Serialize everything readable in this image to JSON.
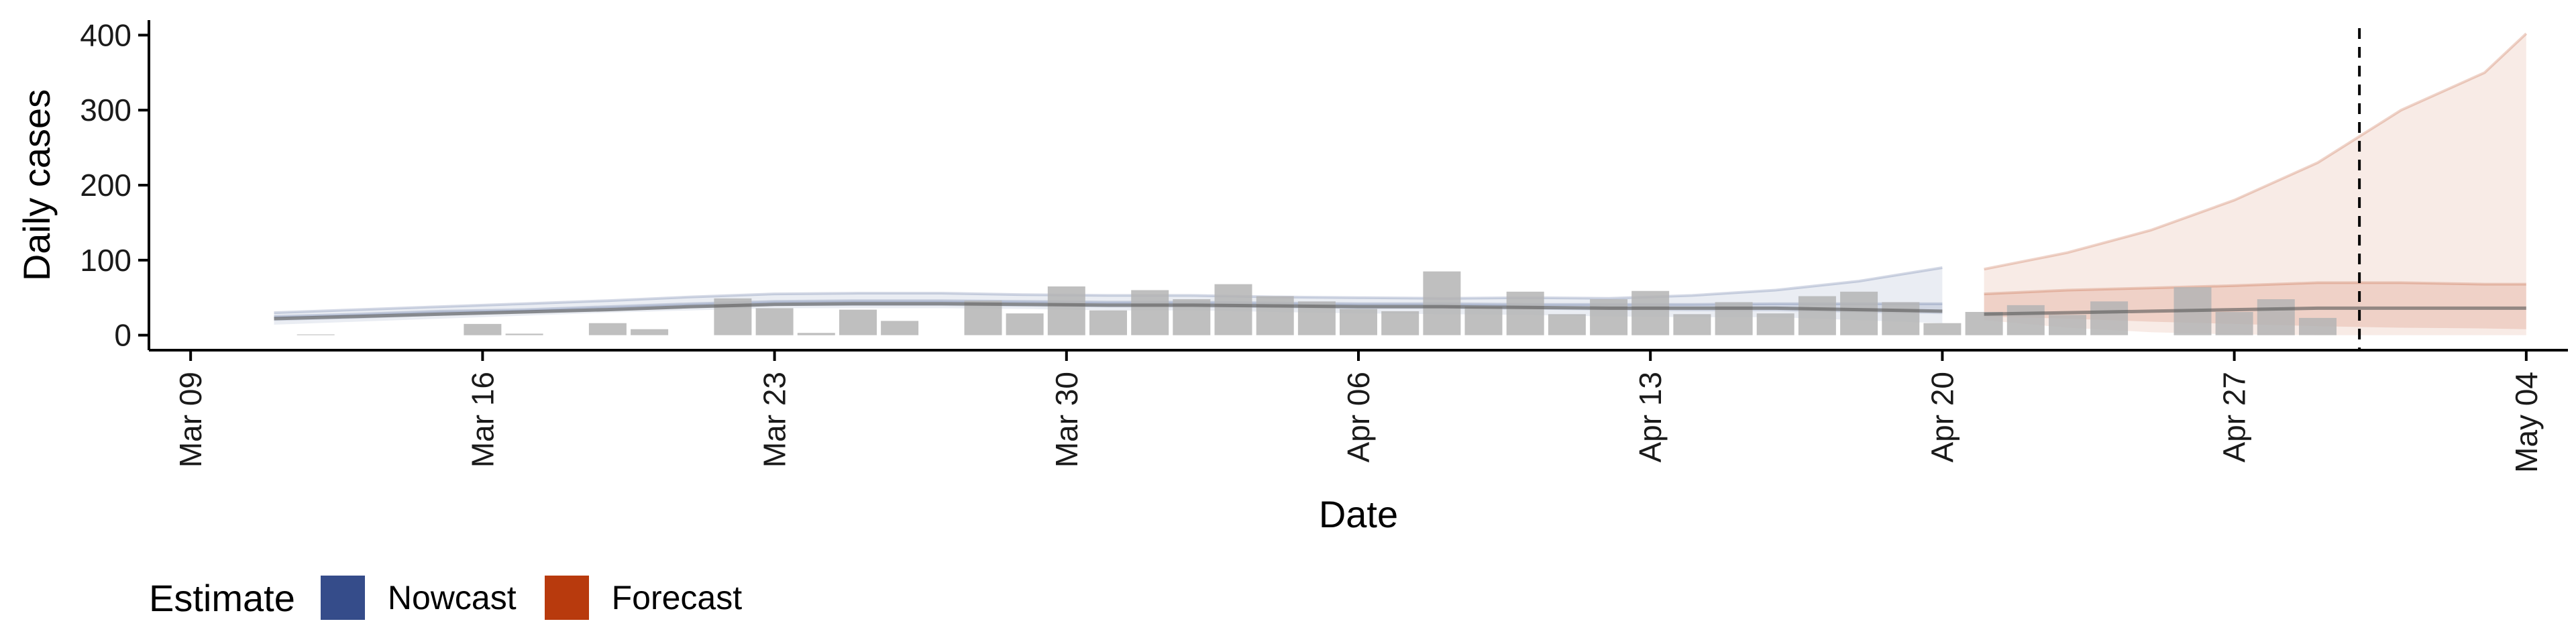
{
  "chart_data": {
    "type": "bar",
    "title": "",
    "xlabel": "Date",
    "ylabel": "Daily cases",
    "ylim": [
      -20,
      420
    ],
    "y_ticks": [
      0,
      100,
      200,
      300,
      400
    ],
    "x_range": [
      "2020-03-08",
      "2020-05-05"
    ],
    "x_ticks": [
      {
        "date": "2020-03-09",
        "label": "Mar 09"
      },
      {
        "date": "2020-03-16",
        "label": "Mar 16"
      },
      {
        "date": "2020-03-23",
        "label": "Mar 23"
      },
      {
        "date": "2020-03-30",
        "label": "Mar 30"
      },
      {
        "date": "2020-04-06",
        "label": "Apr 06"
      },
      {
        "date": "2020-04-13",
        "label": "Apr 13"
      },
      {
        "date": "2020-04-20",
        "label": "Apr 20"
      },
      {
        "date": "2020-04-27",
        "label": "Apr 27"
      },
      {
        "date": "2020-05-04",
        "label": "May 04"
      }
    ],
    "reference_line": {
      "date": "2020-04-30",
      "style": "dashed"
    },
    "grid": false,
    "legend": {
      "title": "Estimate",
      "placement": "bottom-left",
      "entries": [
        {
          "label": "Nowcast",
          "color": "#354c8a"
        },
        {
          "label": "Forecast",
          "color": "#b83a0d"
        }
      ]
    },
    "observed_cases": {
      "color": "#b4b4b4",
      "dates": [
        "2020-03-12",
        "2020-03-13",
        "2020-03-14",
        "2020-03-15",
        "2020-03-16",
        "2020-03-17",
        "2020-03-18",
        "2020-03-19",
        "2020-03-20",
        "2020-03-21",
        "2020-03-22",
        "2020-03-23",
        "2020-03-24",
        "2020-03-25",
        "2020-03-26",
        "2020-03-27",
        "2020-03-28",
        "2020-03-29",
        "2020-03-30",
        "2020-03-31",
        "2020-04-01",
        "2020-04-02",
        "2020-04-03",
        "2020-04-04",
        "2020-04-05",
        "2020-04-06",
        "2020-04-07",
        "2020-04-08",
        "2020-04-09",
        "2020-04-10",
        "2020-04-11",
        "2020-04-12",
        "2020-04-13",
        "2020-04-14",
        "2020-04-15",
        "2020-04-16",
        "2020-04-17",
        "2020-04-18",
        "2020-04-19",
        "2020-04-20",
        "2020-04-21",
        "2020-04-22",
        "2020-04-23",
        "2020-04-24",
        "2020-04-25",
        "2020-04-26",
        "2020-04-27",
        "2020-04-28",
        "2020-04-29"
      ],
      "values": [
        1,
        0,
        0,
        0,
        15,
        2,
        0,
        16,
        8,
        0,
        49,
        36,
        3,
        34,
        19,
        0,
        46,
        29,
        65,
        33,
        60,
        48,
        68,
        52,
        45,
        35,
        32,
        85,
        38,
        58,
        28,
        48,
        59,
        28,
        44,
        29,
        52,
        58,
        44,
        16,
        31,
        40,
        27,
        45,
        0,
        64,
        31,
        48,
        23
      ]
    },
    "nowcast": {
      "color": "#354c8a",
      "dates": [
        "2020-03-11",
        "2020-03-13",
        "2020-03-15",
        "2020-03-17",
        "2020-03-19",
        "2020-03-21",
        "2020-03-23",
        "2020-03-25",
        "2020-03-27",
        "2020-03-29",
        "2020-03-31",
        "2020-04-02",
        "2020-04-04",
        "2020-04-06",
        "2020-04-08",
        "2020-04-10",
        "2020-04-12",
        "2020-04-14",
        "2020-04-16",
        "2020-04-18",
        "2020-04-20"
      ],
      "median": [
        22,
        25,
        28,
        31,
        34,
        38,
        41,
        42,
        42,
        41,
        40,
        40,
        39,
        38,
        38,
        37,
        36,
        36,
        36,
        34,
        32
      ],
      "lower_90": [
        14,
        18,
        22,
        26,
        30,
        33,
        36,
        36,
        36,
        35,
        33,
        33,
        31,
        29,
        28,
        27,
        25,
        24,
        24,
        20,
        16
      ],
      "upper_90": [
        30,
        34,
        38,
        42,
        46,
        51,
        55,
        56,
        56,
        54,
        53,
        53,
        51,
        50,
        49,
        50,
        49,
        53,
        60,
        72,
        90
      ],
      "lower_50": [
        19,
        22,
        26,
        29,
        32,
        36,
        39,
        39,
        39,
        38,
        37,
        37,
        36,
        35,
        35,
        34,
        33,
        32,
        32,
        30,
        28
      ],
      "upper_50": [
        25,
        28,
        32,
        34,
        38,
        42,
        45,
        46,
        46,
        45,
        44,
        44,
        43,
        42,
        42,
        41,
        41,
        41,
        42,
        42,
        42
      ]
    },
    "forecast": {
      "color": "#b83a0d",
      "dates": [
        "2020-04-21",
        "2020-04-23",
        "2020-04-25",
        "2020-04-27",
        "2020-04-29",
        "2020-05-01",
        "2020-05-03",
        "2020-05-04"
      ],
      "median": [
        28,
        30,
        32,
        34,
        36,
        36,
        36,
        36
      ],
      "lower_90": [
        20,
        10,
        4,
        1,
        0,
        0,
        0,
        0
      ],
      "upper_90": [
        88,
        110,
        140,
        180,
        230,
        300,
        350,
        402
      ],
      "lower_50": [
        25,
        22,
        18,
        15,
        12,
        10,
        9,
        8
      ],
      "upper_50": [
        55,
        60,
        63,
        66,
        70,
        70,
        68,
        68
      ]
    }
  }
}
